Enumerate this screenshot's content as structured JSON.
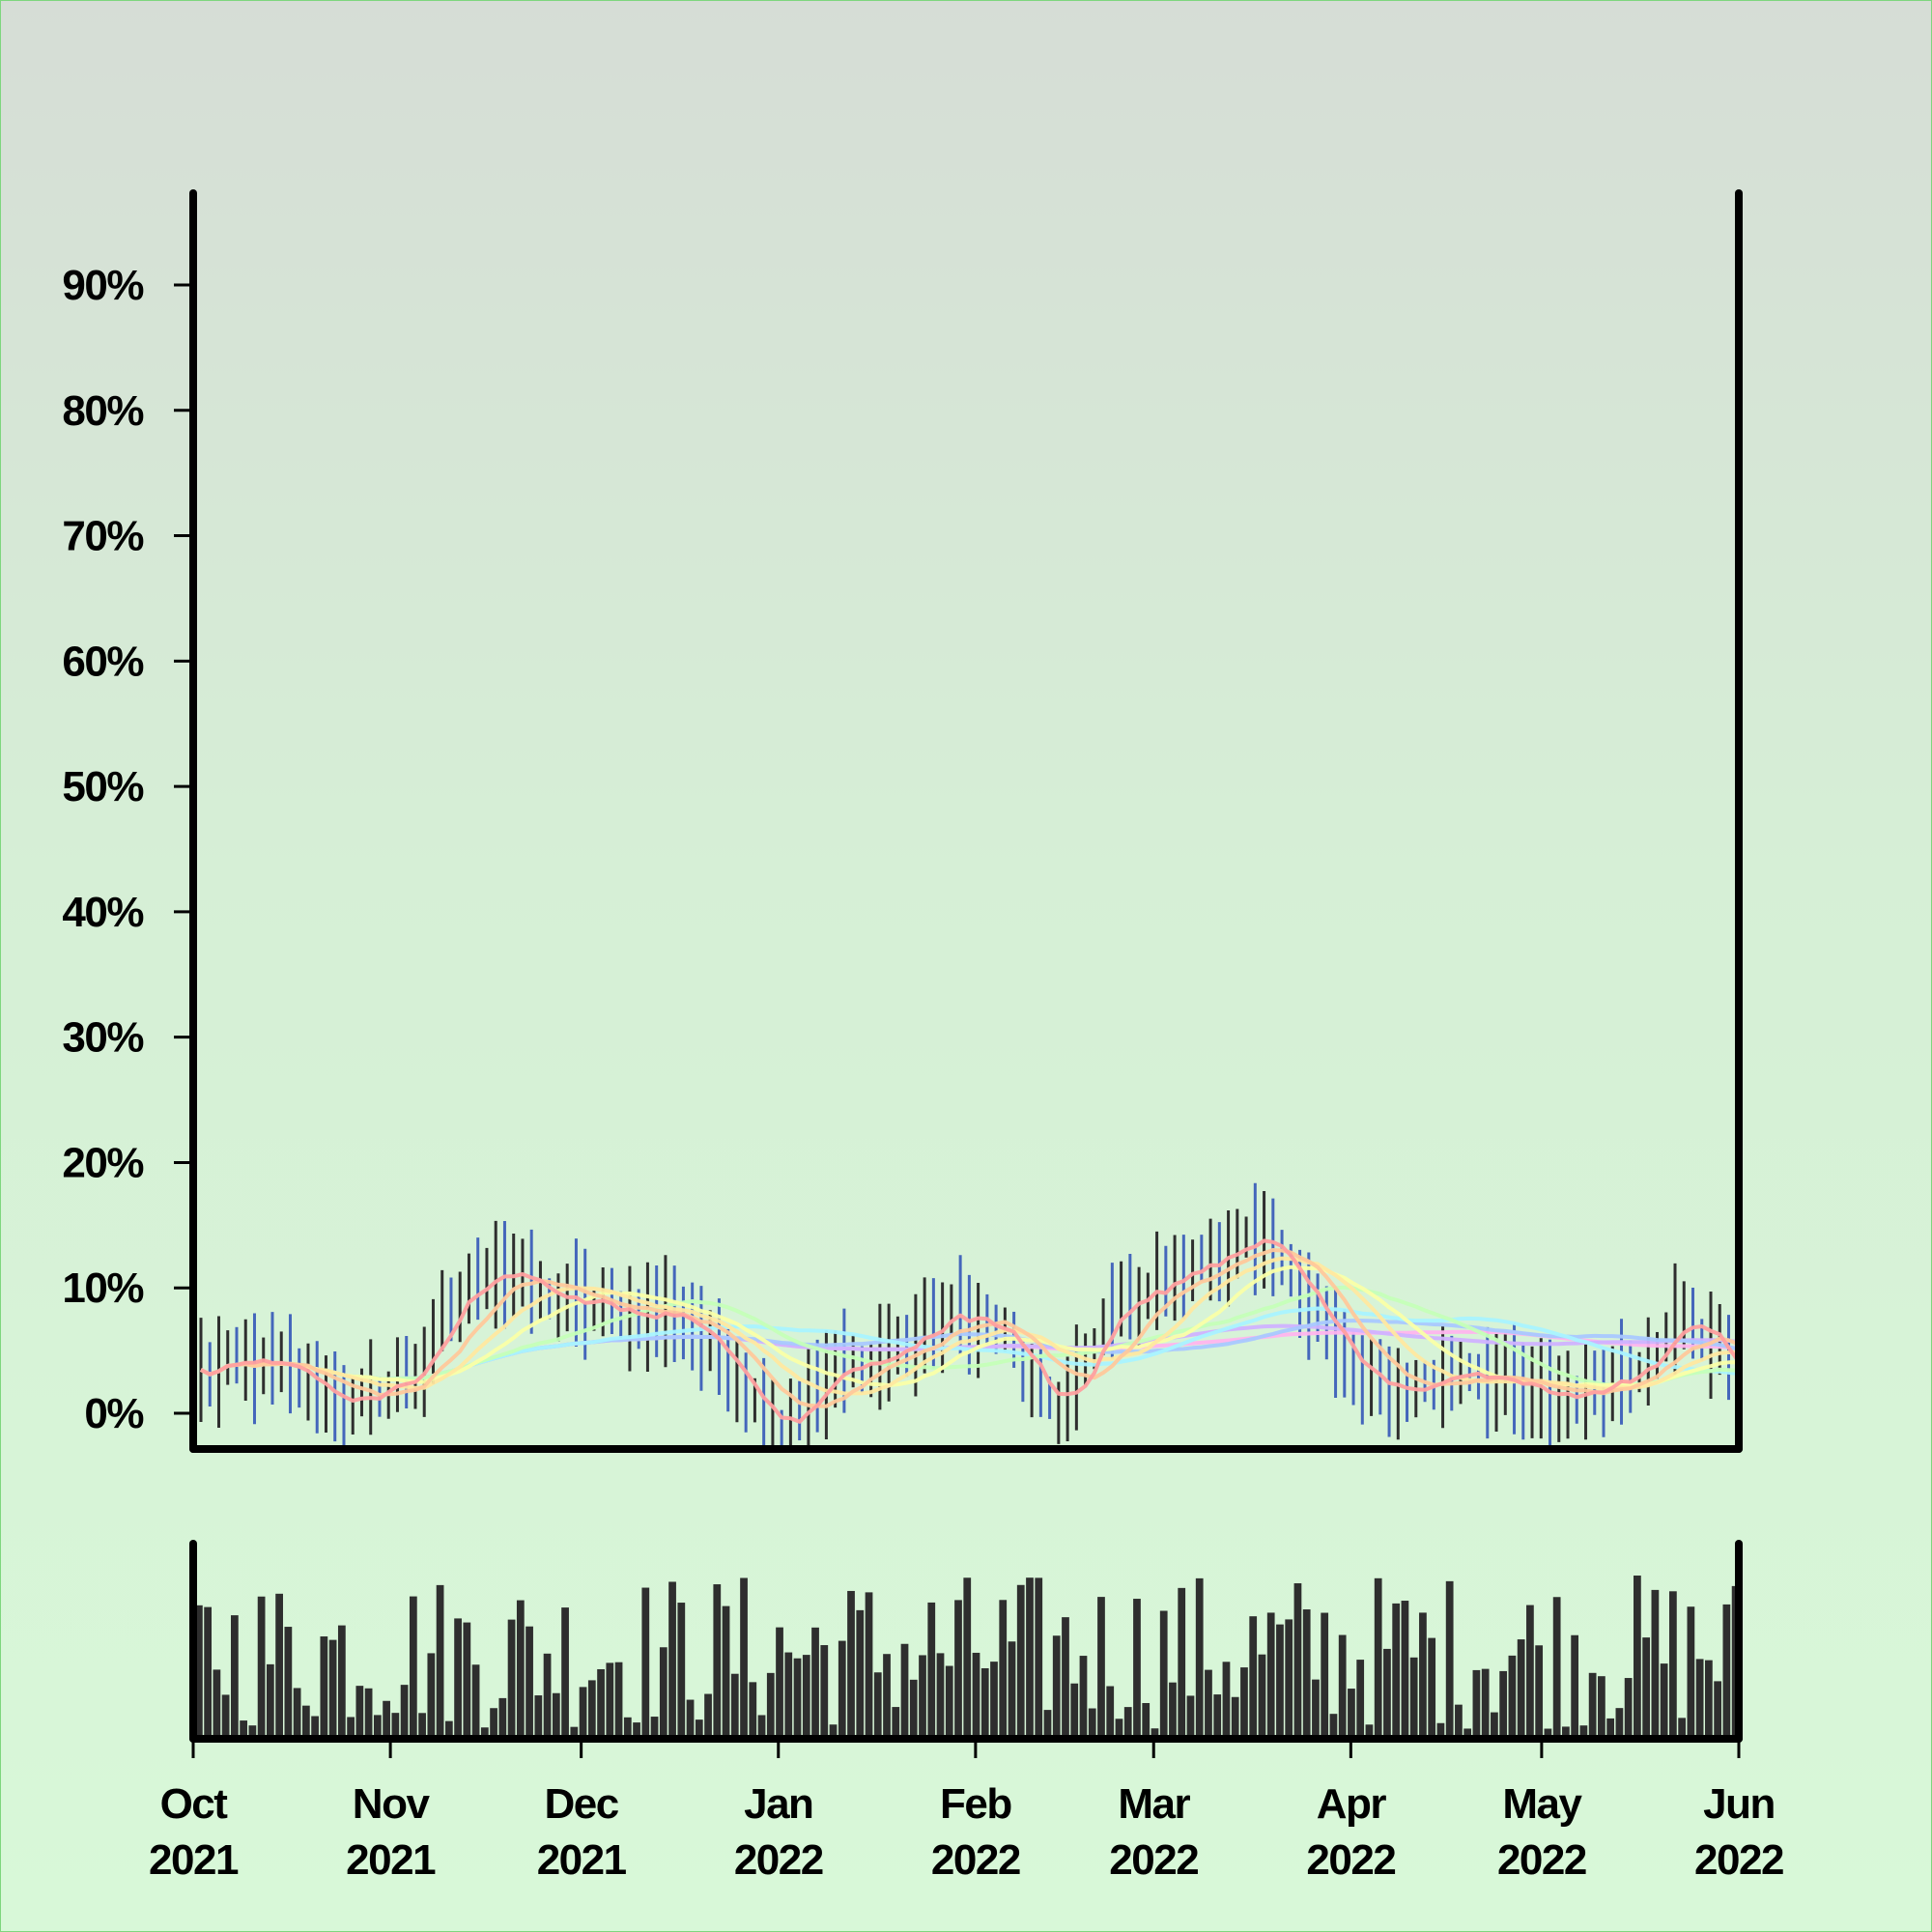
{
  "chart_data": [
    {
      "type": "ohlc",
      "panel": "price",
      "title": "",
      "xlabel": "",
      "ylabel": "",
      "x_range": [
        "2021-10-01",
        "2022-06-01"
      ],
      "ylim": [
        -2,
        100
      ],
      "y_ticks": [
        0,
        10,
        20,
        30,
        40,
        50,
        60,
        70,
        80,
        90
      ],
      "y_tick_labels": [
        "0%",
        "10%",
        "20%",
        "30%",
        "40%",
        "50%",
        "60%",
        "70%",
        "80%",
        "90%"
      ],
      "x_ticks": [
        "2021-10-01",
        "2021-11-01",
        "2021-12-01",
        "2022-01-01",
        "2022-02-01",
        "2022-03-01",
        "2022-04-01",
        "2022-05-01",
        "2022-06-01"
      ],
      "x_tick_labels": [
        [
          "Oct",
          "2021"
        ],
        [
          "Nov",
          "2021"
        ],
        [
          "Dec",
          "2021"
        ],
        [
          "Jan",
          "2022"
        ],
        [
          "Feb",
          "2022"
        ],
        [
          "Mar",
          "2022"
        ],
        [
          "Apr",
          "2022"
        ],
        [
          "May",
          "2022"
        ],
        [
          "Jun",
          "2022"
        ]
      ],
      "bar_colors": {
        "up": "#2e2e2e",
        "down": "#4466bb"
      },
      "close_anchors": [
        [
          "2021-10-01",
          3
        ],
        [
          "2021-10-10",
          4
        ],
        [
          "2021-10-20",
          2
        ],
        [
          "2021-10-26",
          0.5
        ],
        [
          "2021-11-05",
          4
        ],
        [
          "2021-11-12",
          10
        ],
        [
          "2021-11-16",
          12
        ],
        [
          "2021-11-25",
          9
        ],
        [
          "2021-12-06",
          8
        ],
        [
          "2021-12-15",
          8
        ],
        [
          "2021-12-25",
          3
        ],
        [
          "2021-12-31",
          -1
        ],
        [
          "2022-01-08",
          3
        ],
        [
          "2022-01-18",
          5
        ],
        [
          "2022-01-28",
          8
        ],
        [
          "2022-02-05",
          6
        ],
        [
          "2022-02-12",
          -1
        ],
        [
          "2022-02-22",
          9
        ],
        [
          "2022-03-05",
          11
        ],
        [
          "2022-03-12",
          14
        ],
        [
          "2022-03-22",
          11
        ],
        [
          "2022-04-01",
          2
        ],
        [
          "2022-04-10",
          2
        ],
        [
          "2022-04-18",
          4
        ],
        [
          "2022-04-28",
          1
        ],
        [
          "2022-05-08",
          2
        ],
        [
          "2022-05-16",
          5
        ],
        [
          "2022-05-22",
          8
        ],
        [
          "2022-06-01",
          2
        ]
      ],
      "moving_averages": [
        {
          "window": 5,
          "color": "#ff9f9f"
        },
        {
          "window": 10,
          "color": "#ffc89b"
        },
        {
          "window": 15,
          "color": "#ffe8a0"
        },
        {
          "window": 20,
          "color": "#faffa8"
        },
        {
          "window": 30,
          "color": "#c5ffb8"
        },
        {
          "window": 45,
          "color": "#a9f3ff"
        },
        {
          "window": 60,
          "color": "#a9c8ff"
        },
        {
          "window": 90,
          "color": "#d0b2ff"
        },
        {
          "window": 120,
          "color": "#ffb4ee"
        }
      ]
    },
    {
      "type": "bar",
      "panel": "volume",
      "title": "",
      "xlabel": "",
      "ylabel": "",
      "color": "#2e2e2e",
      "note_values": "relative daily volume, 0-1 of panel height"
    }
  ]
}
